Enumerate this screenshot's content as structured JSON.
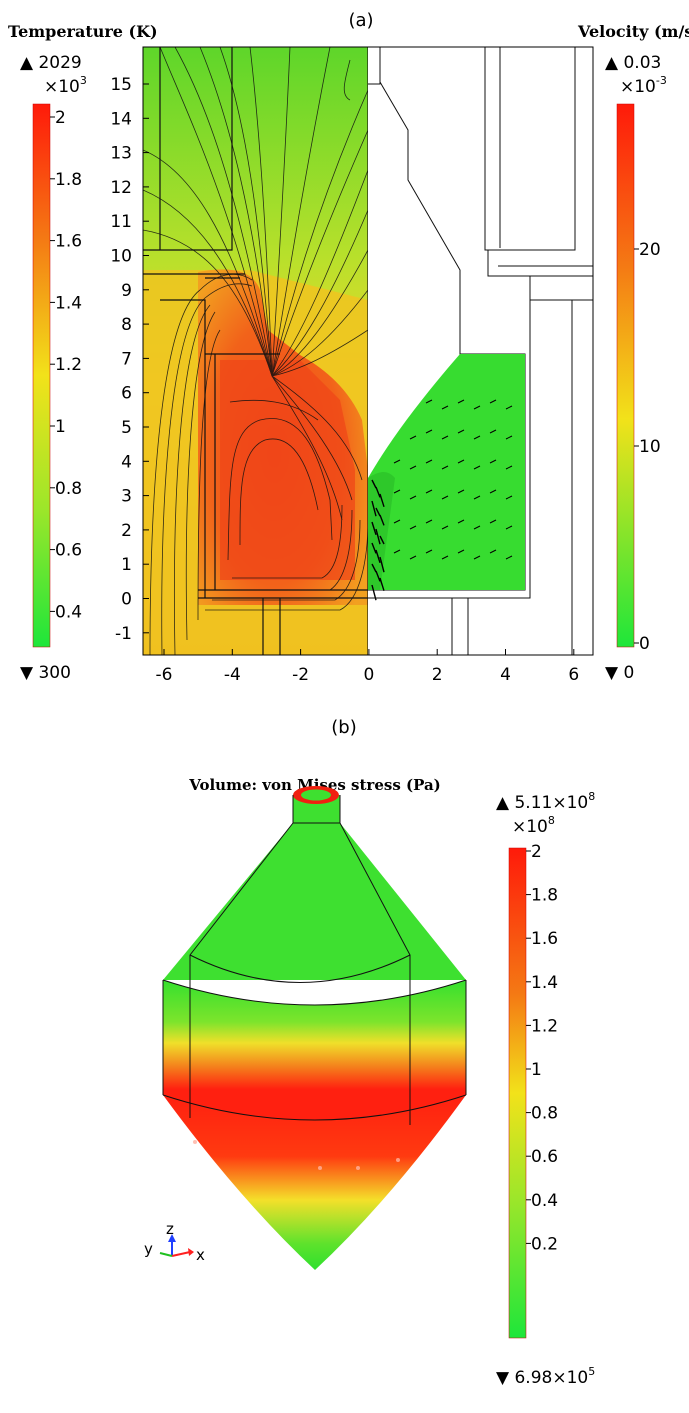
{
  "panel_a": {
    "label": "(a)",
    "temp_colorbar": {
      "title": "Temperature (K)",
      "max_label": "▲ 2029",
      "scale_label": "×10",
      "scale_exp": "3",
      "min_label": "▼ 300",
      "ticks": [
        "2",
        "1.8",
        "1.6",
        "1.4",
        "1.2",
        "1",
        "0.8",
        "0.6",
        "0.4"
      ],
      "colors": [
        "#ff0000",
        "#ff8000",
        "#ffff00",
        "#00ff00"
      ]
    },
    "vel_colorbar": {
      "title": "Velocity (m/s)",
      "max_label": "▲ 0.03",
      "scale_label": "×10",
      "scale_exp": "-3",
      "min_label": "▼ 0",
      "ticks": [
        "20",
        "10",
        "0"
      ]
    },
    "y_ticks": [
      "15",
      "14",
      "13",
      "12",
      "11",
      "10",
      "9",
      "8",
      "7",
      "6",
      "5",
      "4",
      "3",
      "2",
      "1",
      "0",
      "-1"
    ],
    "x_ticks": [
      "-6",
      "-4",
      "-2",
      "0",
      "2",
      "4",
      "6"
    ]
  },
  "panel_b": {
    "label": "(b)",
    "title": "Volume: von Mises stress (Pa)",
    "stress_colorbar": {
      "max_label": "▲ 5.11×10",
      "max_exp": "8",
      "scale_label": "×10",
      "scale_exp": "8",
      "min_label": "▼ 6.98×10",
      "min_exp": "5",
      "ticks": [
        "2",
        "1.8",
        "1.6",
        "1.4",
        "1.2",
        "1",
        "0.8",
        "0.6",
        "0.4",
        "0.2"
      ]
    },
    "axes_triad": {
      "x": "x",
      "y": "y",
      "z": "z"
    }
  }
}
